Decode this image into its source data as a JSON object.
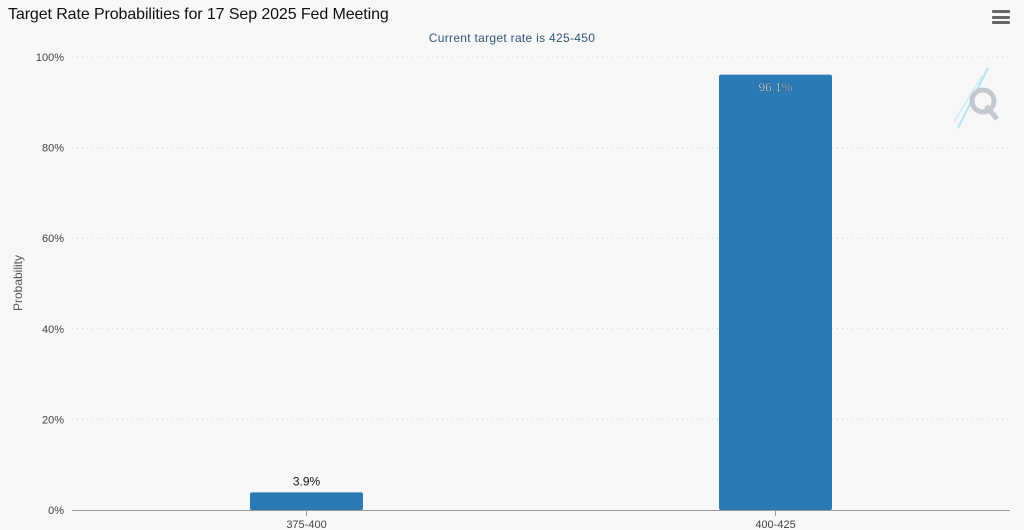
{
  "header": {
    "title": "Target Rate Probabilities for 17 Sep 2025 Fed Meeting",
    "subtitle": "Current target rate is 425-450"
  },
  "toolbar": {
    "menu_icon": "hamburger-menu-icon"
  },
  "watermark": {
    "icon": "quikstrike-q-logo"
  },
  "chart_data": {
    "type": "bar",
    "title": "Target Rate Probabilities for 17 Sep 2025 Fed Meeting",
    "subtitle": "Current target rate is 425-450",
    "categories": [
      "375-400",
      "400-425"
    ],
    "values": [
      3.9,
      96.1
    ],
    "data_labels": [
      "3.9%",
      "96.1%"
    ],
    "ylabel": "Probability",
    "xlabel": "",
    "ylim": [
      0,
      100
    ],
    "yticks": [
      0,
      20,
      40,
      60,
      80,
      100
    ],
    "ytick_labels": [
      "0%",
      "20%",
      "40%",
      "60%",
      "80%",
      "100%"
    ],
    "grid": true,
    "legend": "none",
    "colors": {
      "bar": "#2a7ab5",
      "grid": "#d4d4d4",
      "axis": "#999999"
    }
  }
}
